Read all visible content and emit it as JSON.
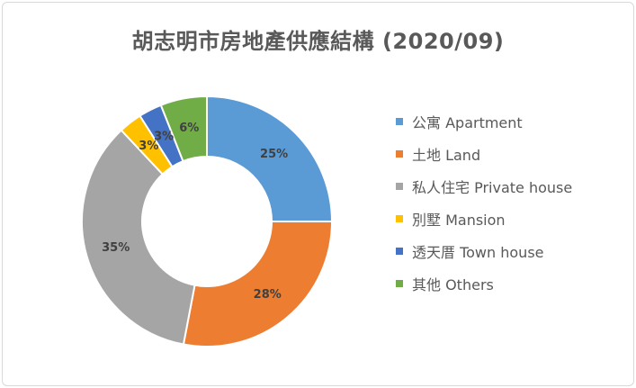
{
  "chart_data": {
    "type": "pie",
    "style": "doughnut",
    "title": "胡志明市房地產供應結構 (2020/09)",
    "legend_position": "right",
    "slices": [
      {
        "label": "公寓 Apartment",
        "value": 25,
        "data_label": "25%",
        "color": "#5B9BD5"
      },
      {
        "label": "土地 Land",
        "value": 28,
        "data_label": "28%",
        "color": "#ED7D31"
      },
      {
        "label": "私人住宅 Private house",
        "value": 35,
        "data_label": "35%",
        "color": "#A5A5A5"
      },
      {
        "label": "別墅 Mansion",
        "value": 3,
        "data_label": "3%",
        "color": "#FFC000"
      },
      {
        "label": "透天厝 Town house",
        "value": 3,
        "data_label": "3%",
        "color": "#4472C4"
      },
      {
        "label": "其他 Others",
        "value": 6,
        "data_label": "6%",
        "color": "#70AD47"
      }
    ]
  }
}
